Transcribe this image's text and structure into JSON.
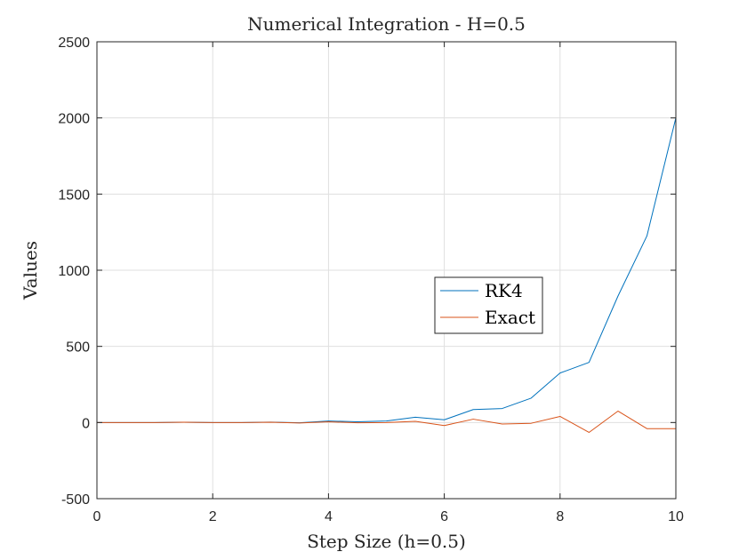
{
  "chart_data": {
    "type": "line",
    "title": "Numerical Integration - H=0.5",
    "xlabel": "Step Size (h=0.5)",
    "ylabel": "Values",
    "xlim": [
      0,
      10
    ],
    "ylim": [
      -500,
      2500
    ],
    "xticks": [
      0,
      2,
      4,
      6,
      8,
      10
    ],
    "yticks": [
      -500,
      0,
      500,
      1000,
      1500,
      2000,
      2500
    ],
    "grid": true,
    "legend_position": "center-right",
    "x": [
      0,
      0.5,
      1,
      1.5,
      2,
      2.5,
      3,
      3.5,
      4,
      4.5,
      5,
      5.5,
      6,
      6.5,
      7,
      7.5,
      8,
      8.5,
      9,
      9.5,
      10
    ],
    "series": [
      {
        "name": "RK4",
        "color": "#0072BD",
        "values": [
          0,
          0,
          0,
          2,
          0,
          0,
          3,
          -2,
          10,
          5,
          10,
          35,
          18,
          85,
          92,
          160,
          325,
          395,
          830,
          1225,
          2000
        ]
      },
      {
        "name": "Exact",
        "color": "#D95319",
        "values": [
          0,
          0,
          0,
          2,
          0,
          0,
          2,
          -3,
          5,
          -2,
          0,
          8,
          -20,
          22,
          -10,
          -5,
          40,
          -65,
          75,
          -40,
          -40
        ]
      }
    ]
  }
}
